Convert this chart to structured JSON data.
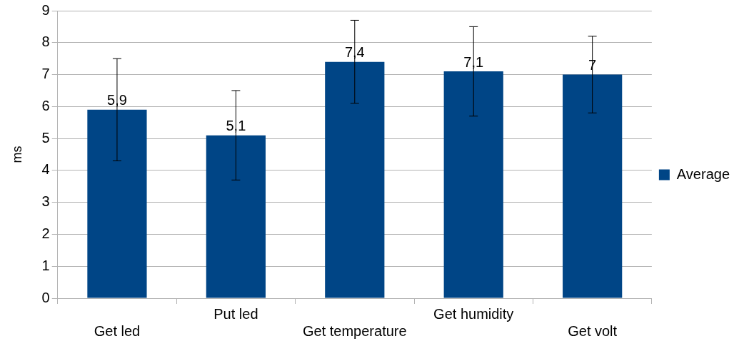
{
  "chart_data": {
    "type": "bar",
    "ylabel": "ms",
    "categories": [
      "Get led",
      "Put led",
      "Get temperature",
      "Get humidity",
      "Get volt"
    ],
    "series": [
      {
        "name": "Average",
        "color": "#004586",
        "values": [
          5.9,
          5.1,
          7.4,
          7.1,
          7.0
        ],
        "errors": [
          1.6,
          1.4,
          1.3,
          1.4,
          1.2
        ],
        "value_labels": [
          "5,9",
          "5,1",
          "7,4",
          "7,1",
          "7"
        ]
      }
    ],
    "ylim": [
      0,
      9
    ],
    "yticks": [
      0,
      1,
      2,
      3,
      4,
      5,
      6,
      7,
      8,
      9
    ],
    "grid": "y",
    "legend": "right"
  }
}
